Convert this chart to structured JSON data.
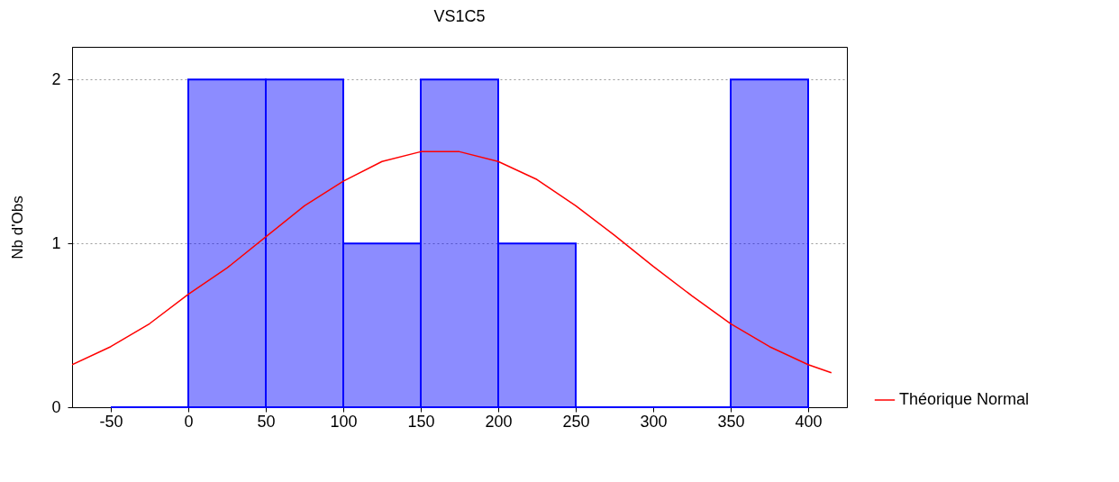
{
  "chart_data": {
    "type": "histogram",
    "title": "VS1C5",
    "ylabel": "Nb d'Obs",
    "xlim": [
      -75,
      425
    ],
    "xticks": [
      -50,
      0,
      50,
      100,
      150,
      200,
      250,
      300,
      350,
      400
    ],
    "ylim": [
      0,
      2.2
    ],
    "yticks": [
      0,
      1,
      2
    ],
    "grid": "y",
    "legend": "bottom right",
    "series": [
      {
        "color": "#0000ff",
        "bins": [
          -50,
          0,
          50,
          100,
          150,
          200,
          250,
          300,
          350,
          400
        ],
        "values": [
          0,
          2,
          2,
          1,
          2,
          1,
          0,
          0,
          2
        ]
      },
      {
        "type": "line",
        "name": "Théorique Normal",
        "color": "#ff0000",
        "x": [
          -75,
          -50,
          -25,
          0,
          25,
          50,
          75,
          100,
          125,
          150,
          175,
          200,
          225,
          250,
          275,
          300,
          325,
          350,
          375,
          400,
          415
        ],
        "values": [
          0.26,
          0.37,
          0.51,
          0.69,
          0.85,
          1.04,
          1.23,
          1.38,
          1.5,
          1.56,
          1.56,
          1.5,
          1.39,
          1.23,
          1.05,
          0.86,
          0.68,
          0.51,
          0.37,
          0.26,
          0.21
        ]
      }
    ]
  }
}
